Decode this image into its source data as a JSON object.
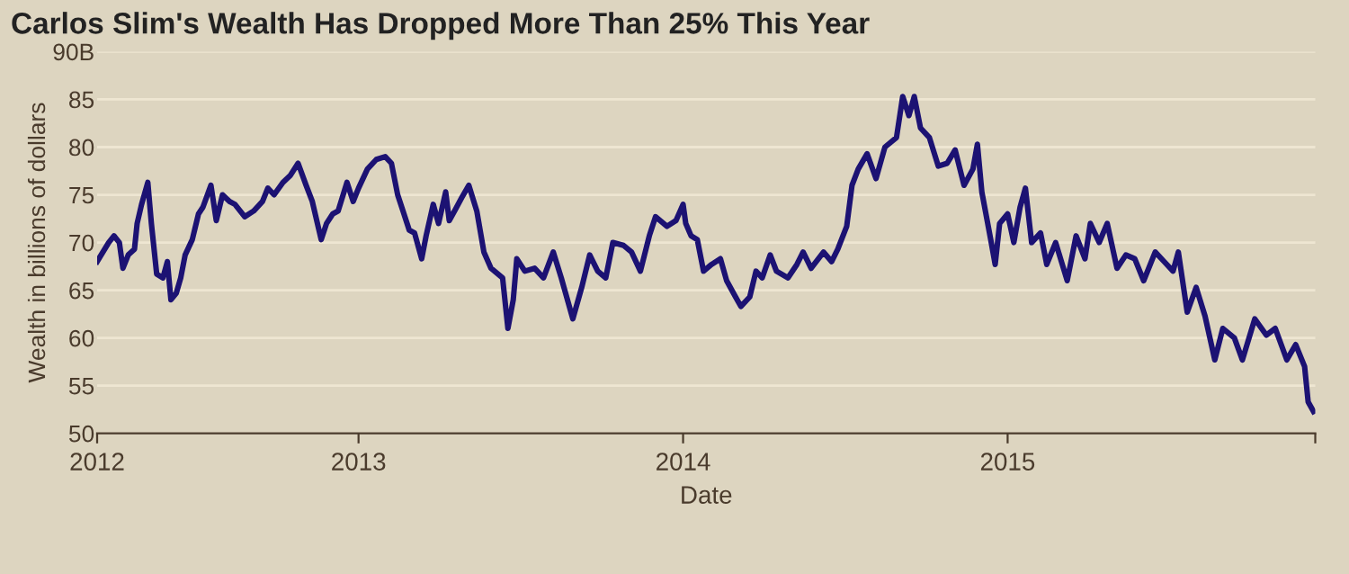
{
  "chart_data": {
    "type": "line",
    "title": "Carlos Slim's Wealth Has Dropped More Than 25% This Year",
    "xlabel": "Date",
    "ylabel": "Wealth in billions of dollars",
    "x": [
      "2012-03-13",
      "2012-03-26",
      "2012-04-01",
      "2012-04-07",
      "2012-04-11",
      "2012-04-17",
      "2012-04-24",
      "2012-04-27",
      "2012-05-02",
      "2012-05-09",
      "2012-05-13",
      "2012-05-19",
      "2012-05-26",
      "2012-05-31",
      "2012-06-04",
      "2012-06-10",
      "2012-06-15",
      "2012-06-20",
      "2012-06-28",
      "2012-07-05",
      "2012-07-10",
      "2012-07-19",
      "2012-07-25",
      "2012-08-01",
      "2012-08-09",
      "2012-08-15",
      "2012-08-26",
      "2012-09-05",
      "2012-09-15",
      "2012-09-21",
      "2012-09-28",
      "2012-10-08",
      "2012-10-16",
      "2012-10-25",
      "2012-11-03",
      "2012-11-10",
      "2012-11-20",
      "2012-11-26",
      "2012-12-03",
      "2012-12-09",
      "2012-12-19",
      "2012-12-26",
      "2013-01-01",
      "2013-01-11",
      "2013-01-21",
      "2013-01-31",
      "2013-02-07",
      "2013-02-14",
      "2013-02-20",
      "2013-02-27",
      "2013-03-05",
      "2013-03-13",
      "2013-03-18",
      "2013-03-26",
      "2013-04-01",
      "2013-04-09",
      "2013-04-13",
      "2013-04-19",
      "2013-04-27",
      "2013-05-05",
      "2013-05-14",
      "2013-05-22",
      "2013-05-30",
      "2013-06-12",
      "2013-06-18",
      "2013-06-24",
      "2013-06-28",
      "2013-07-07",
      "2013-07-18",
      "2013-07-28",
      "2013-08-08",
      "2013-08-17",
      "2013-08-30",
      "2013-09-09",
      "2013-09-18",
      "2013-09-27",
      "2013-10-06",
      "2013-10-14",
      "2013-10-26",
      "2013-11-04",
      "2013-11-14",
      "2013-11-24",
      "2013-12-01",
      "2013-12-14",
      "2013-12-24",
      "2014-01-01",
      "2014-01-04",
      "2014-01-10",
      "2014-01-17",
      "2014-01-24",
      "2014-02-02",
      "2014-02-12",
      "2014-02-19",
      "2014-03-01",
      "2014-03-07",
      "2014-03-17",
      "2014-03-24",
      "2014-03-31",
      "2014-04-09",
      "2014-04-16",
      "2014-04-29",
      "2014-05-09",
      "2014-05-16",
      "2014-05-25",
      "2014-06-08",
      "2014-06-17",
      "2014-06-24",
      "2014-07-04",
      "2014-07-10",
      "2014-07-17",
      "2014-07-27",
      "2014-08-06",
      "2014-08-16",
      "2014-08-29",
      "2014-09-05",
      "2014-09-12",
      "2014-09-18",
      "2014-09-25",
      "2014-10-05",
      "2014-10-15",
      "2014-10-25",
      "2014-11-03",
      "2014-11-13",
      "2014-11-23",
      "2014-11-28",
      "2014-12-03",
      "2014-12-13",
      "2014-12-18",
      "2014-12-23",
      "2015-01-01",
      "2015-01-08",
      "2015-01-15",
      "2015-01-21",
      "2015-01-28",
      "2015-02-07",
      "2015-02-14",
      "2015-02-24",
      "2015-03-09",
      "2015-03-19",
      "2015-03-29",
      "2015-04-04",
      "2015-04-14",
      "2015-04-23",
      "2015-05-04",
      "2015-05-14",
      "2015-05-24",
      "2015-06-03",
      "2015-06-16",
      "2015-06-26",
      "2015-07-06",
      "2015-07-12",
      "2015-07-22",
      "2015-08-01",
      "2015-08-11",
      "2015-08-22",
      "2015-08-31",
      "2015-09-13",
      "2015-09-22",
      "2015-10-06",
      "2015-10-19",
      "2015-10-29",
      "2015-11-11",
      "2015-11-21",
      "2015-12-01",
      "2015-12-05",
      "2015-12-11"
    ],
    "series": [
      {
        "color": "#1c1273",
        "values": [
          68.0,
          70.0,
          70.7,
          70.0,
          67.3,
          68.7,
          69.3,
          72.0,
          74.0,
          76.3,
          72.0,
          66.7,
          66.3,
          68.0,
          64.0,
          64.7,
          66.3,
          68.7,
          70.3,
          73.0,
          73.7,
          76.0,
          72.3,
          75.0,
          74.3,
          74.0,
          72.7,
          73.3,
          74.3,
          75.7,
          75.0,
          76.3,
          77.0,
          78.3,
          76.0,
          74.3,
          70.3,
          72.0,
          73.0,
          73.3,
          76.3,
          74.3,
          75.7,
          77.7,
          78.7,
          79.0,
          78.3,
          75.0,
          73.3,
          71.3,
          71.0,
          68.3,
          70.7,
          74.0,
          72.0,
          75.3,
          72.3,
          73.3,
          74.7,
          76.0,
          73.3,
          69.0,
          67.3,
          66.3,
          61.0,
          64.0,
          68.3,
          67.0,
          67.3,
          66.3,
          69.0,
          66.3,
          62.0,
          65.3,
          68.7,
          67.0,
          66.3,
          70.0,
          69.7,
          69.0,
          67.0,
          70.7,
          72.7,
          71.7,
          72.3,
          74.0,
          72.0,
          70.7,
          70.3,
          67.0,
          67.7,
          68.3,
          66.0,
          64.3,
          63.3,
          64.3,
          67.0,
          66.3,
          68.7,
          67.0,
          66.3,
          67.7,
          69.0,
          67.3,
          69.0,
          68.0,
          69.3,
          71.7,
          76.0,
          77.7,
          79.3,
          76.7,
          80.0,
          81.0,
          85.3,
          83.3,
          85.3,
          82.0,
          81.0,
          78.0,
          78.3,
          79.7,
          76.0,
          77.7,
          80.3,
          75.3,
          70.3,
          67.7,
          72.0,
          73.0,
          70.0,
          73.7,
          75.7,
          70.0,
          71.0,
          67.7,
          70.0,
          66.0,
          70.7,
          68.3,
          72.0,
          70.0,
          72.0,
          67.3,
          68.7,
          68.3,
          66.0,
          69.0,
          68.0,
          67.0,
          69.0,
          62.7,
          65.3,
          62.3,
          57.7,
          61.0,
          60.0,
          57.7,
          62.0,
          60.3,
          61.0,
          57.7,
          59.3,
          57.0,
          53.3,
          52.3
        ]
      }
    ],
    "xlim": [
      "2012-03-13",
      "2015-12-13"
    ],
    "xticks": [
      {
        "value": "2012-03-13",
        "label": "2012"
      },
      {
        "value": "2013-01-01",
        "label": "2013"
      },
      {
        "value": "2014-01-01",
        "label": "2014"
      },
      {
        "value": "2015-01-01",
        "label": "2015"
      },
      {
        "value": "2015-12-13",
        "label": null
      }
    ],
    "ylim": [
      50,
      90
    ],
    "yticks": [
      50,
      55,
      60,
      65,
      70,
      75,
      80,
      85,
      {
        "value": 90,
        "label": "90B"
      }
    ],
    "grid": "y",
    "marker": "none",
    "line_style": "solid"
  }
}
